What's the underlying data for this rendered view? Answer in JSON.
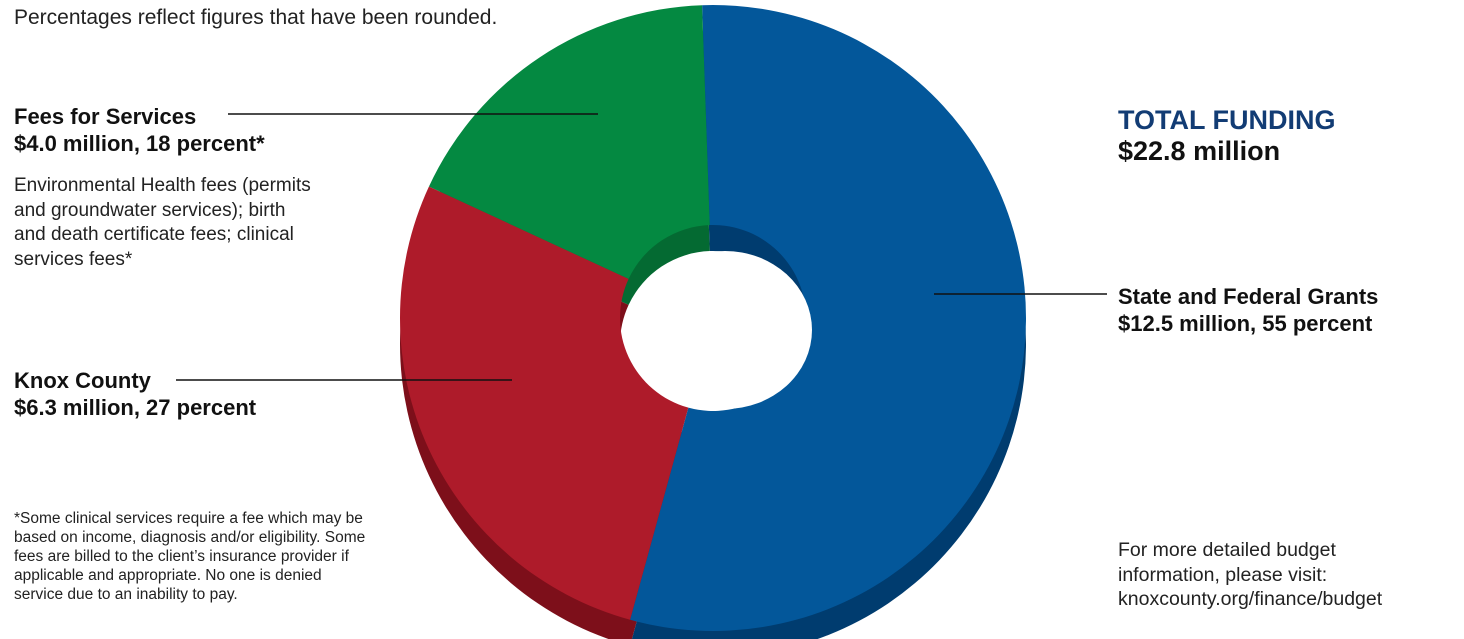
{
  "note": "Percentages reflect figures that have been rounded.",
  "chart_data": {
    "type": "pie",
    "style": "donut-3d",
    "total_title": "TOTAL FUNDING",
    "total_value": "$22.8 million",
    "slices": [
      {
        "name": "State and Federal Grants",
        "value": 12.5,
        "percent": 55,
        "amount_label": "$12.5 million, 55 percent",
        "color": "#03579a",
        "side_color": "#003c6f"
      },
      {
        "name": "Knox County",
        "value": 6.3,
        "percent": 27,
        "amount_label": "$6.3 million, 27 percent",
        "color": "#ae1b2a",
        "side_color": "#7d0f1a"
      },
      {
        "name": "Fees for Services",
        "value": 4.0,
        "percent": 18,
        "amount_label": "$4.0 million, 18 percent*",
        "color": "#048941",
        "side_color": "#046a32"
      }
    ]
  },
  "fees_description": "Environmental Health fees (permits and groundwater services); birth and death certificate fees; clinical services fees*",
  "footnote": "*Some clinical services require a fee which may be based on income, diagnosis and/or eligibility. Some fees are billed to the client’s insurance provider if applicable and appropriate. No one is denied service due to an inability to pay.",
  "more_info": {
    "line1": "For more detailed budget",
    "line2": "information, please visit:",
    "url": "knoxcounty.org/finance/budget"
  },
  "colors": {
    "total_title": "#123c74",
    "text": "#111111"
  }
}
